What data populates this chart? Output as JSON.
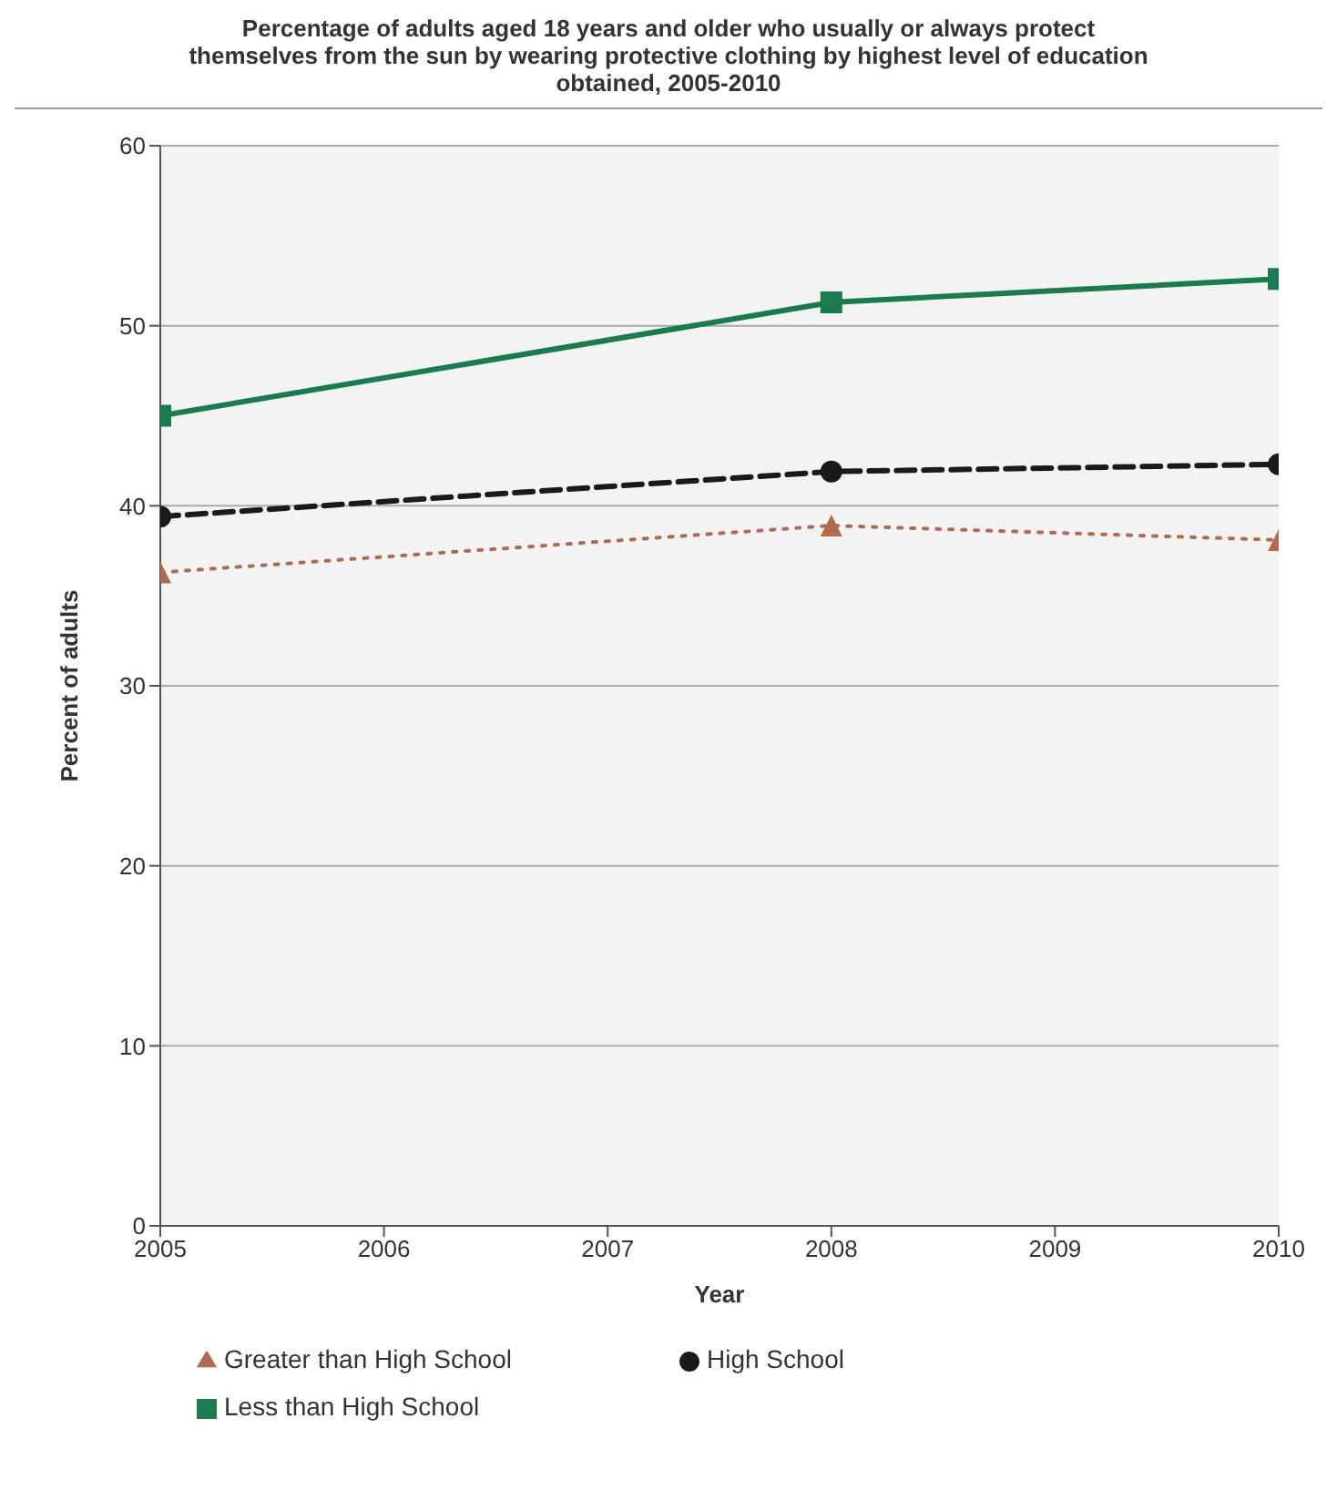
{
  "chart_data": {
    "type": "line",
    "title": "Percentage of adults aged 18 years and older who usually or always protect themselves from the sun by wearing protective clothing by highest level of education obtained, 2005-2010",
    "xlabel": "Year",
    "ylabel": "Percent of adults",
    "x": [
      2005,
      2008,
      2010
    ],
    "series": [
      {
        "name": "Less than High School",
        "color": "#1b7a4f",
        "values": [
          45.0,
          51.3,
          52.6
        ],
        "marker": "square",
        "line_style": "solid"
      },
      {
        "name": "High School",
        "color": "#1a1a1a",
        "values": [
          39.4,
          41.9,
          42.3
        ],
        "marker": "circle",
        "line_style": "dashed"
      },
      {
        "name": "Greater than High School",
        "color": "#b06a50",
        "values": [
          36.3,
          38.9,
          38.1
        ],
        "marker": "triangle",
        "line_style": "dotted"
      }
    ],
    "xlim": [
      2005,
      2010
    ],
    "xticks": [
      2005,
      2006,
      2007,
      2008,
      2009,
      2010
    ],
    "ylim": [
      0,
      60
    ],
    "yticks": [
      0,
      10,
      20,
      30,
      40,
      50,
      60
    ],
    "grid": "y",
    "legend": "bottom"
  }
}
